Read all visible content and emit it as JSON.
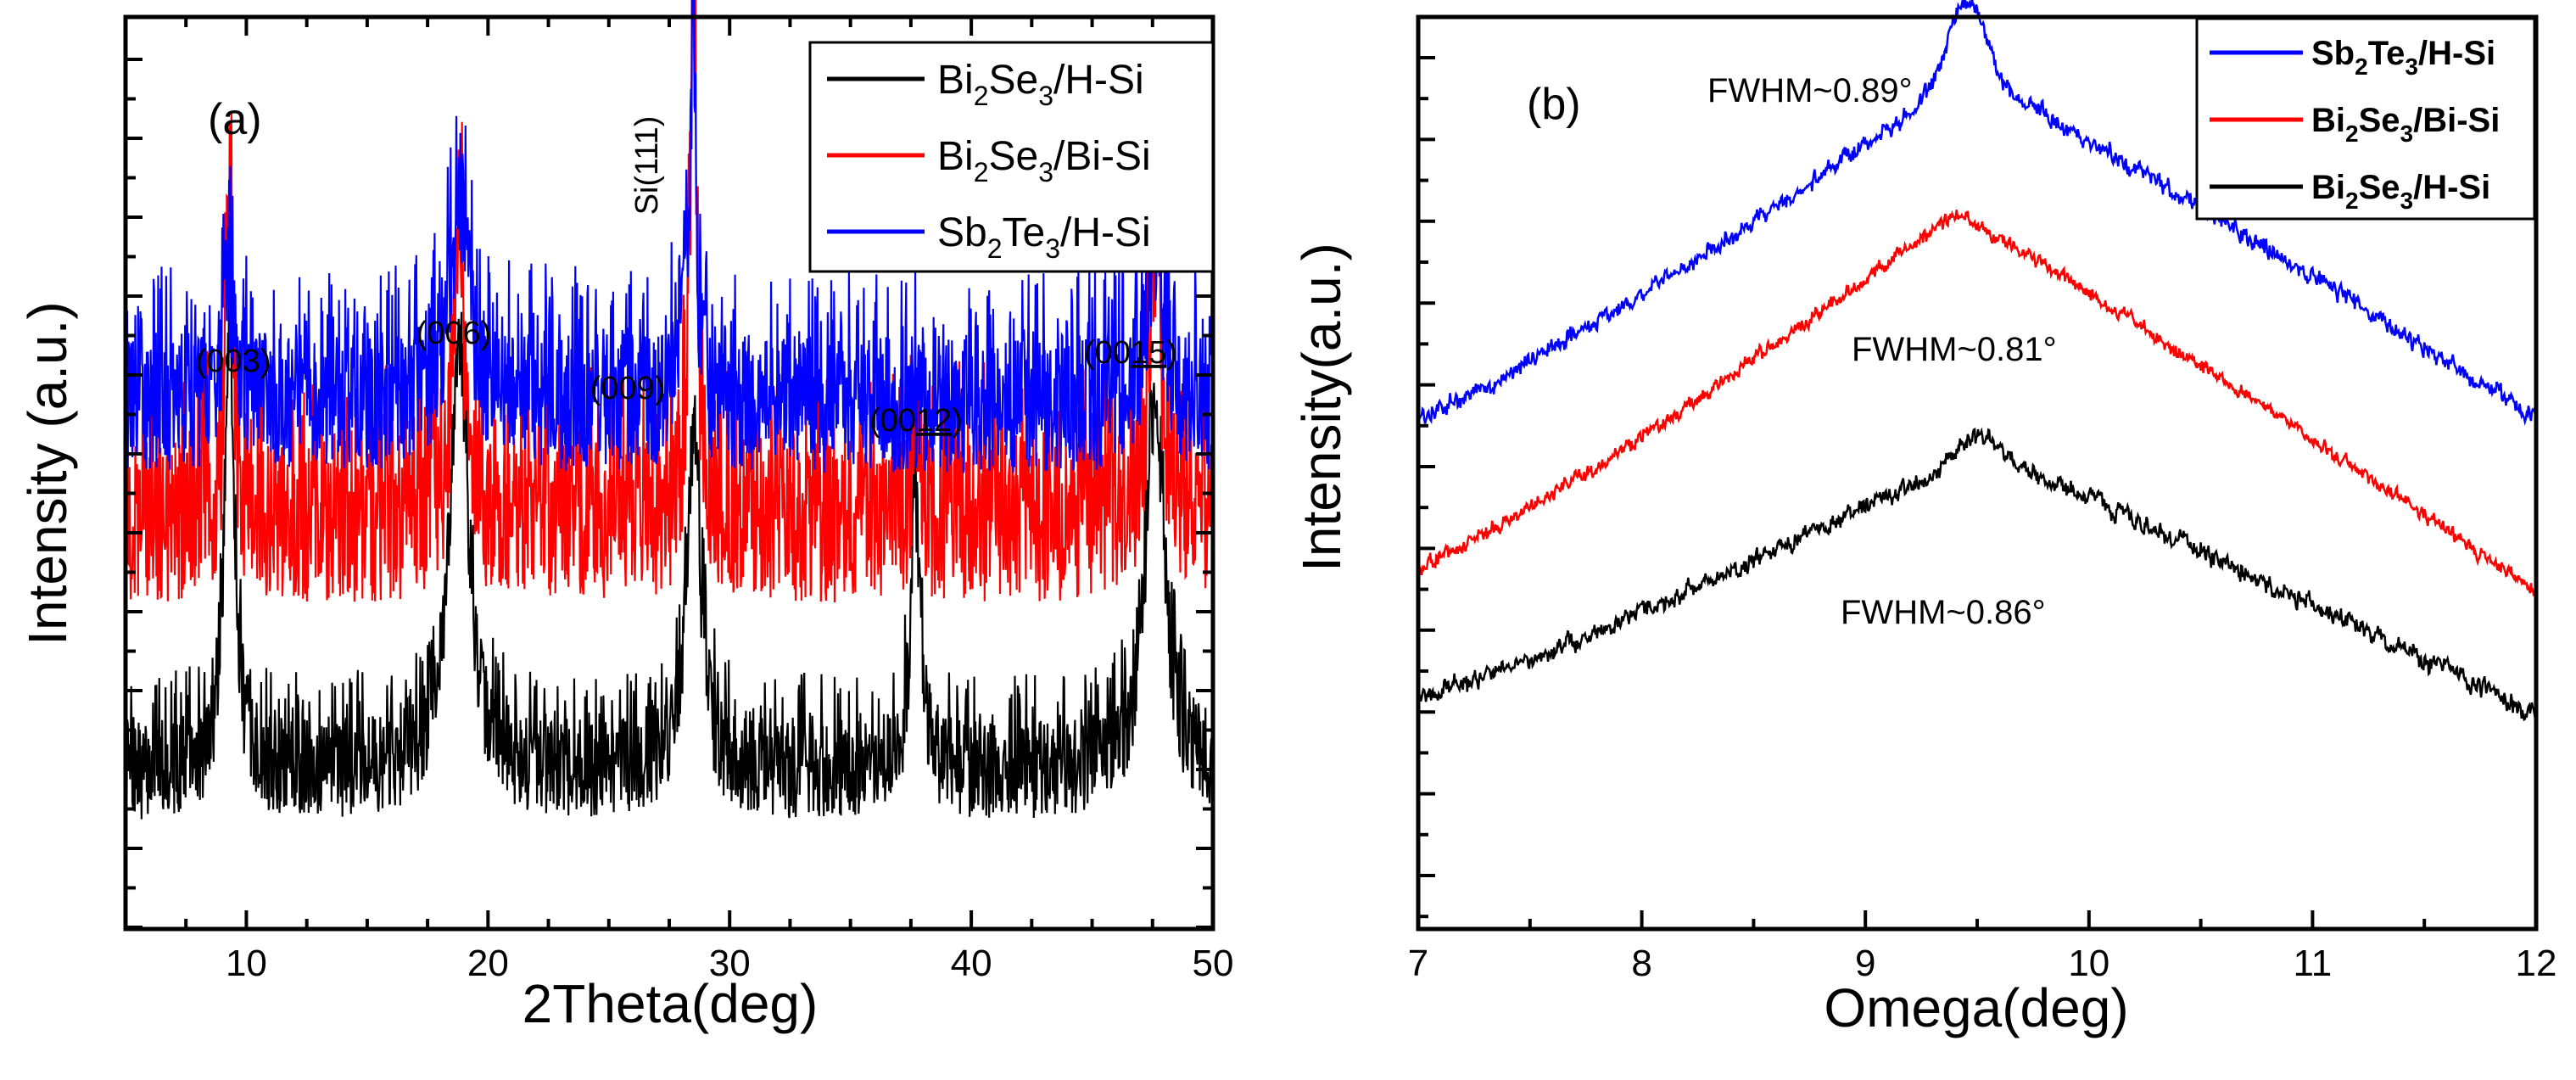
{
  "chart_data": [
    {
      "panel_label": "(a)",
      "type": "line",
      "xlabel": "2Theta(deg)",
      "ylabel": "Intensity (a.u.)",
      "xlim": [
        5,
        50
      ],
      "ylim": [
        0,
        100
      ],
      "xticks": [
        "10",
        "20",
        "30",
        "40",
        "50"
      ],
      "yticks": "unlabeled",
      "legend_position": "top-right",
      "peaks": [
        {
          "label": "(003)",
          "x": 9.3
        },
        {
          "label": "(006)",
          "x": 18.8
        },
        {
          "label": "(009)",
          "x": 28.0
        },
        {
          "label": "Si(111)",
          "x": 28.5
        },
        {
          "label": "(0012)",
          "label_plain": "(00",
          "label_underlined": "12",
          "label_close": ")",
          "x": 37.7
        },
        {
          "label": "(0015)",
          "label_plain": "(00",
          "label_underlined": "15",
          "label_close": ")",
          "x": 47.6
        }
      ],
      "series": [
        {
          "name": "Bi2Se3/H-Si",
          "legend": {
            "a": "Bi",
            "b": "2",
            "c": "Se",
            "d": "3",
            "e": "/H-Si"
          },
          "color": "#000000",
          "baseline": 9,
          "noise": 12,
          "peaks": [
            {
              "x": 9.3,
              "height": 55,
              "width": 0.25
            },
            {
              "x": 18.8,
              "height": 55,
              "width": 0.45
            },
            {
              "x": 28.5,
              "height": 42,
              "width": 0.35
            },
            {
              "x": 37.7,
              "height": 33,
              "width": 0.25
            },
            {
              "x": 47.6,
              "height": 47,
              "width": 0.45
            }
          ]
        },
        {
          "name": "Bi2Se3/Bi-Si",
          "legend": {
            "a": "Bi",
            "b": "2",
            "c": "Se",
            "d": "3",
            "e": "/Bi-Si"
          },
          "color": "#ff0000",
          "baseline": 36,
          "noise": 20,
          "peaks": [
            {
              "x": 9.3,
              "height": 40,
              "width": 0.18
            },
            {
              "x": 18.8,
              "height": 39,
              "width": 0.25
            },
            {
              "x": 28.5,
              "height": 57,
              "width": 0.18
            },
            {
              "x": 37.7,
              "height": 16,
              "width": 0.15
            },
            {
              "x": 47.6,
              "height": 35,
              "width": 0.3
            }
          ]
        },
        {
          "name": "Sb2Te3/H-Si",
          "legend": {
            "a": "Sb",
            "b": "2",
            "c": "Te",
            "d": "3",
            "e": "/H-Si"
          },
          "color": "#0000ff",
          "baseline": 52,
          "noise": 17,
          "peaks": [
            {
              "x": 9.3,
              "height": 15,
              "width": 0.3
            },
            {
              "x": 18.8,
              "height": 26,
              "width": 0.45
            },
            {
              "x": 28.0,
              "height": 10,
              "width": 0.3
            },
            {
              "x": 28.5,
              "height": 46,
              "width": 0.13
            },
            {
              "x": 47.6,
              "height": 21,
              "width": 0.35
            }
          ]
        }
      ]
    },
    {
      "panel_label": "(b)",
      "type": "line",
      "xlabel": "Omega(deg)",
      "ylabel": "Intensity(a.u.)",
      "xlim": [
        7,
        12
      ],
      "ylim": [
        0,
        100
      ],
      "xticks": [
        "7",
        "8",
        "9",
        "10",
        "11",
        "12"
      ],
      "yticks": "unlabeled",
      "legend_position": "top-right",
      "series": [
        {
          "name": "Sb2Te3/H-Si",
          "legend": {
            "a": "Sb",
            "b": "2",
            "c": "Te",
            "d": "3",
            "e": "/H-Si"
          },
          "color": "#0000ff",
          "fwhm": "FWHM~0.89°",
          "start": 58,
          "peak_x": 9.45,
          "peak": 100,
          "end": 58,
          "cusp": 9,
          "noise": 1.2
        },
        {
          "name": "Bi2Se3/Bi-Si",
          "legend": {
            "a": "Bi",
            "b": "2",
            "c": "Se",
            "d": "3",
            "e": "/Bi-Si"
          },
          "color": "#ff0000",
          "fwhm": "FWHM~0.81°",
          "start": 40,
          "peak_x": 9.4,
          "peak": 83,
          "end": 37,
          "cusp": 0,
          "noise": 1.0
        },
        {
          "name": "Bi2Se3/H-Si",
          "legend": {
            "a": "Bi",
            "b": "2",
            "c": "Se",
            "d": "3",
            "e": "/H-Si"
          },
          "color": "#000000",
          "fwhm": "FWHM~0.86°",
          "start": 24,
          "peak_x": 9.5,
          "peak": 54,
          "end": 22,
          "cusp": 2,
          "noise": 1.3
        }
      ]
    }
  ]
}
